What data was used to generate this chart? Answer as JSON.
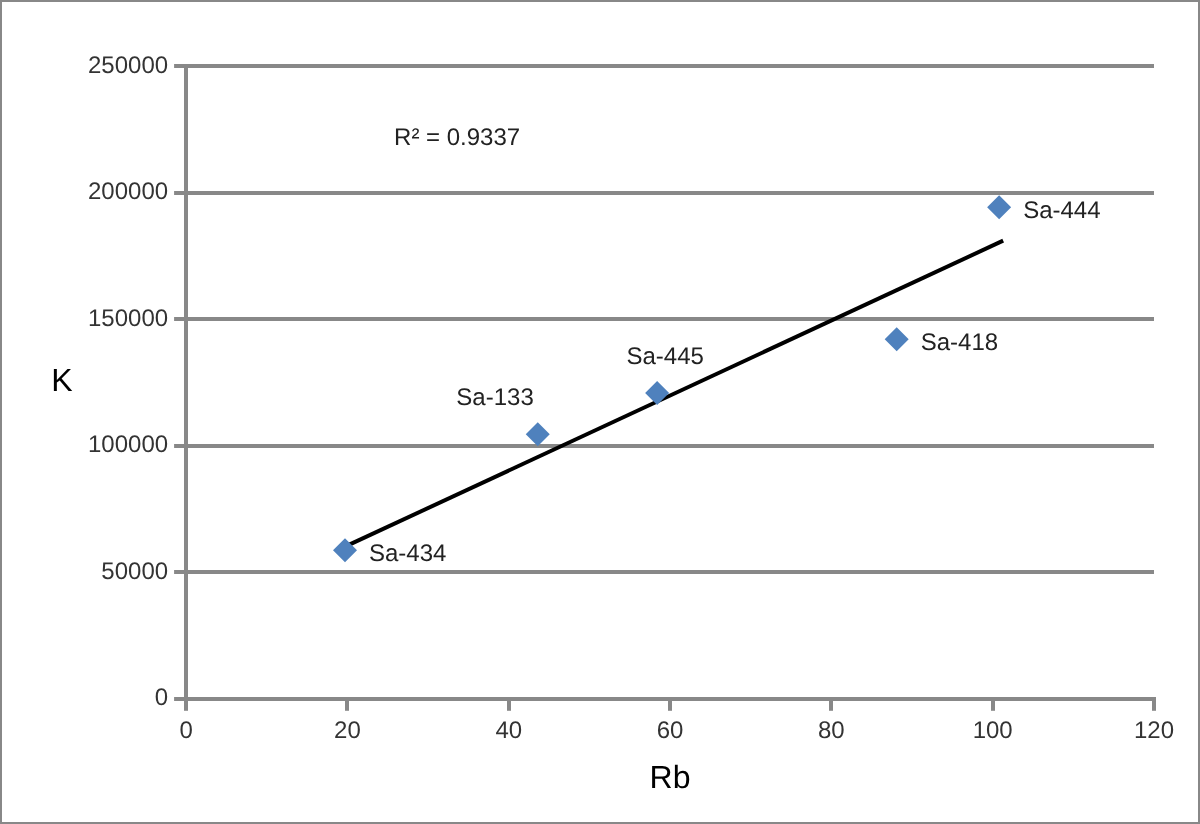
{
  "chart_data": {
    "type": "scatter",
    "xlabel": "Rb",
    "ylabel": "K",
    "x": [
      19.7,
      43.6,
      58.4,
      88.1,
      100.8
    ],
    "series": [
      {
        "color": "#4f81bd",
        "values": [
          58700,
          104500,
          120800,
          142000,
          194200
        ],
        "marker": "diamond"
      },
      {
        "type": "line",
        "color": "#000000",
        "x": [
          19.7,
          101.3
        ],
        "values": [
          60100,
          181000
        ],
        "marker": "none"
      }
    ],
    "xlim": [
      0,
      120
    ],
    "xticks": [
      0,
      20,
      40,
      60,
      80,
      100,
      120
    ],
    "ylim": [
      0,
      250000
    ],
    "yticks": [
      0,
      50000,
      100000,
      150000,
      200000,
      250000
    ],
    "grid": "y",
    "legend": false,
    "annotations": [
      {
        "text": "Sa-434",
        "x": 19.7,
        "y": 58700
      },
      {
        "text": "Sa-133",
        "x": 43.6,
        "y": 104500
      },
      {
        "text": "Sa-445",
        "x": 58.4,
        "y": 120800
      },
      {
        "text": "Sa-418",
        "x": 88.1,
        "y": 142000
      },
      {
        "text": "Sa-444",
        "x": 100.8,
        "y": 194200
      },
      "R² = 0.9337"
    ]
  }
}
